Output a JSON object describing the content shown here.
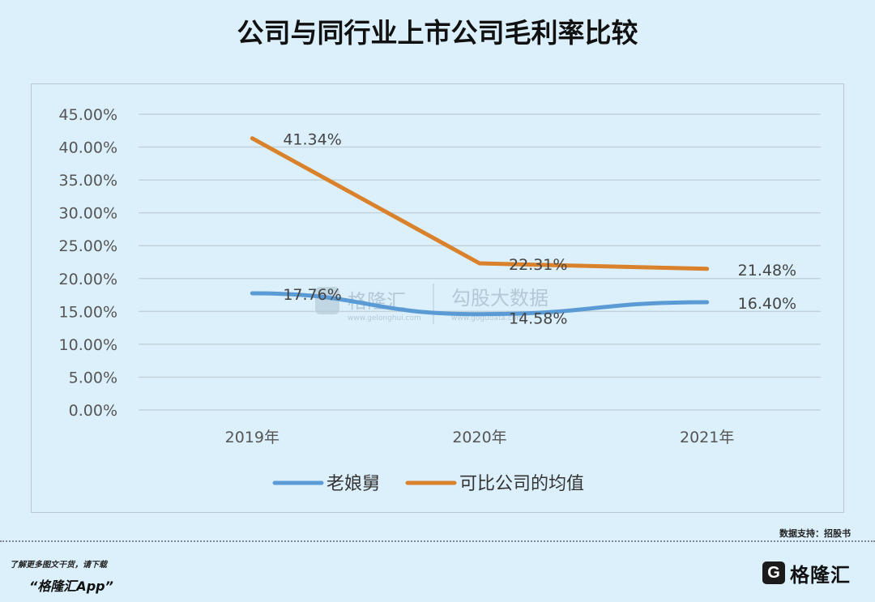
{
  "header": {
    "title": "公司与同行业上市公司毛利率比较"
  },
  "chart_data": {
    "type": "line",
    "title": "公司与同行业上市公司毛利率比较",
    "categories": [
      "2019年",
      "2020年",
      "2021年"
    ],
    "series": [
      {
        "name": "老娘舅",
        "values": [
          17.76,
          14.58,
          16.4
        ],
        "labels": [
          "17.76%",
          "14.58%",
          "16.40%"
        ],
        "color": "#5b9bd5"
      },
      {
        "name": "可比公司的均值",
        "values": [
          41.34,
          22.31,
          21.48
        ],
        "labels": [
          "41.34%",
          "22.31%",
          "21.48%"
        ],
        "color": "#d9822b"
      }
    ],
    "ylim": [
      0,
      45
    ],
    "yticks": [
      "0.00%",
      "5.00%",
      "10.00%",
      "15.00%",
      "20.00%",
      "25.00%",
      "30.00%",
      "35.00%",
      "40.00%",
      "45.00%"
    ],
    "grid": true,
    "legend": "bottom"
  },
  "watermark": {
    "brand": "格隆汇",
    "brand_url": "www.gelonghui.com",
    "product": "勾股大数据",
    "product_url": "www.gogudata.com"
  },
  "footer": {
    "source": "数据支持：招股书",
    "note": "了解更多图文干货，请下载",
    "app": "“格隆汇App”",
    "logo_letter": "G",
    "logo_text": "格隆汇"
  }
}
